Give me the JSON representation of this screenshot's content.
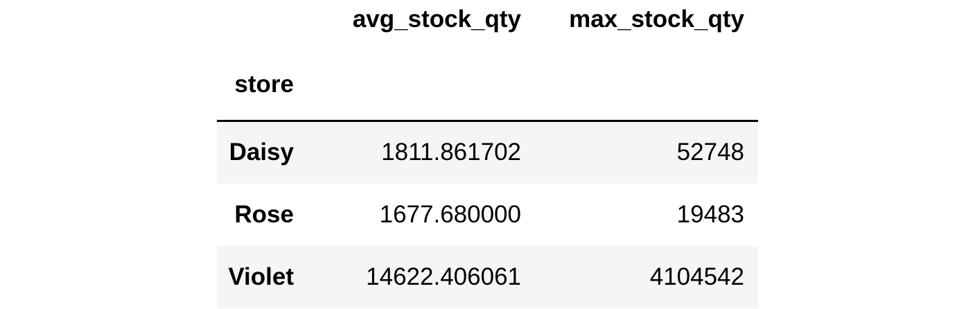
{
  "dataframe": {
    "index_name": "store",
    "columns": [
      "avg_stock_qty",
      "max_stock_qty"
    ],
    "rows": [
      {
        "index": "Daisy",
        "avg_stock_qty": "1811.861702",
        "max_stock_qty": "52748"
      },
      {
        "index": "Rose",
        "avg_stock_qty": "1677.680000",
        "max_stock_qty": "19483"
      },
      {
        "index": "Violet",
        "avg_stock_qty": "14622.406061",
        "max_stock_qty": "4104542"
      }
    ]
  },
  "colors": {
    "text": "#000000",
    "row_stripe": "#f5f5f5",
    "background": "#ffffff",
    "header_rule": "#000000"
  }
}
